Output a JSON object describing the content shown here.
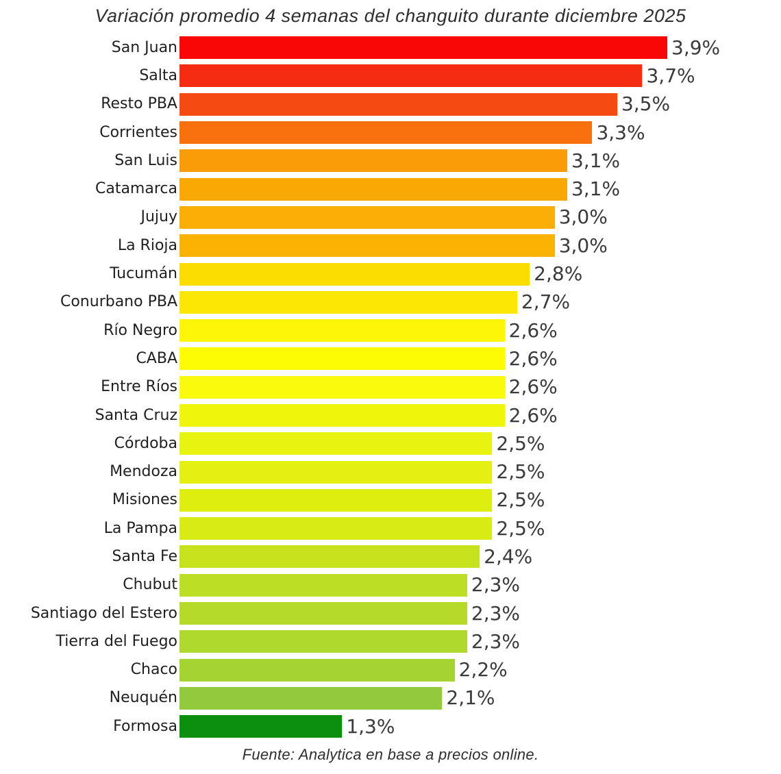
{
  "title": "Variación promedio 4 semanas del changuito durante diciembre 2025",
  "footer": {
    "source": "Fuente: Analytica en base a precios online."
  },
  "chart_data": {
    "type": "bar",
    "orientation": "horizontal",
    "title": "Variación promedio 4 semanas del changuito durante diciembre 2025",
    "xlabel": "",
    "ylabel": "",
    "xlim": [
      0,
      3.9
    ],
    "grid": false,
    "legend": false,
    "value_label_format": "comma-decimal percent",
    "source_note": "Fuente: Analytica en base a precios online.",
    "categories": [
      "San Juan",
      "Salta",
      "Resto PBA",
      "Corrientes",
      "San Luis",
      "Catamarca",
      "Jujuy",
      "La Rioja",
      "Tucumán",
      "Conurbano PBA",
      "Río Negro",
      "CABA",
      "Entre Ríos",
      "Santa Cruz",
      "Córdoba",
      "Mendoza",
      "Misiones",
      "La Pampa",
      "Santa Fe",
      "Chubut",
      "Santiago del Estero",
      "Tierra del Fuego",
      "Chaco",
      "Neuquén",
      "Formosa"
    ],
    "values": [
      3.9,
      3.7,
      3.5,
      3.3,
      3.1,
      3.1,
      3.0,
      3.0,
      2.8,
      2.7,
      2.6,
      2.6,
      2.6,
      2.6,
      2.5,
      2.5,
      2.5,
      2.5,
      2.4,
      2.3,
      2.3,
      2.3,
      2.2,
      2.1,
      1.3
    ],
    "value_labels": [
      "3,9%",
      "3,7%",
      "3,5%",
      "3,3%",
      "3,1%",
      "3,1%",
      "3,0%",
      "3,0%",
      "2,8%",
      "2,7%",
      "2,6%",
      "2,6%",
      "2,6%",
      "2,6%",
      "2,5%",
      "2,5%",
      "2,5%",
      "2,5%",
      "2,4%",
      "2,3%",
      "2,3%",
      "2,3%",
      "2,2%",
      "2,1%",
      "1,3%"
    ],
    "bar_colors": [
      "#F90606",
      "#F52C12",
      "#F54A10",
      "#F7700B",
      "#F99C07",
      "#FAA804",
      "#FAAD03",
      "#FBB202",
      "#FBDC00",
      "#FCE603",
      "#FDF608",
      "#FEFC05",
      "#FAFB0C",
      "#EFF60C",
      "#E9F310",
      "#E4F012",
      "#DEEE0F",
      "#D9EB14",
      "#C6E21C",
      "#BCDE24",
      "#B5DB28",
      "#AFD92C",
      "#A5D432",
      "#93C93C",
      "#0C8F0C"
    ]
  },
  "colors": {
    "background": "#ffffff",
    "title_text": "#2e2e2e",
    "label_text": "#1f1f1f",
    "value_text": "#3a3a3a"
  }
}
